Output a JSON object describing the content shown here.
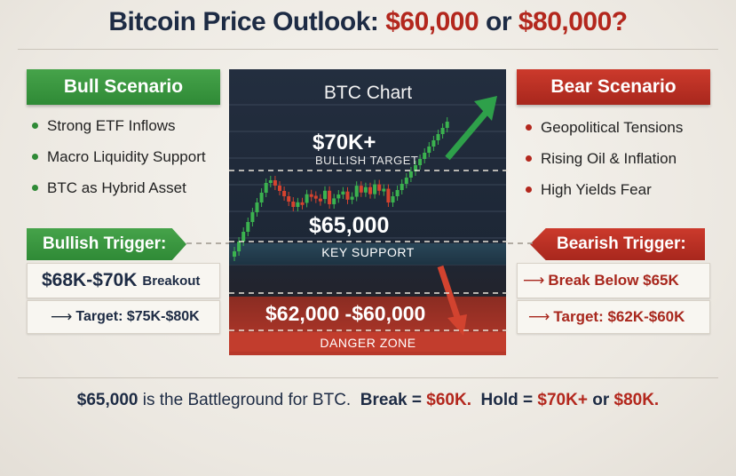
{
  "title": {
    "main": "Bitcoin Price Outlook:",
    "opt1": "$60,000",
    "or": "or",
    "opt2": "$80,000?"
  },
  "bull": {
    "header": "Bull Scenario",
    "items": [
      "Strong ETF Inflows",
      "Macro Liquidity Support",
      "BTC as Hybrid Asset"
    ],
    "trigger": "Bullish Trigger:",
    "breakout_level": "$68K-$70K",
    "breakout_word": "Breakout",
    "target": "Target: $75K-$80K"
  },
  "bear": {
    "header": "Bear Scenario",
    "items": [
      "Geopolitical Tensions",
      "Rising Oil & Inflation",
      "High Yields Fear"
    ],
    "trigger": "Bearish Trigger:",
    "break_text": "Break Below $65K",
    "target": "Target: $62K-$60K"
  },
  "chart": {
    "title": "BTC Chart",
    "target_value": "$70K+",
    "target_label": "BULLISH TARGET",
    "support_value": "$65,000",
    "support_label": "KEY SUPPORT",
    "danger_value": "$62,000 -$60,000",
    "danger_label": "DANGER ZONE"
  },
  "colors": {
    "bull": "#2f8a36",
    "bear": "#b3271d",
    "navy": "#1d2b44"
  },
  "footer": {
    "p1": "$65,000",
    "p2": "is the Battleground for BTC.",
    "p3": "Break =",
    "p4": "$60K.",
    "p5": "Hold =",
    "p6": "$70K+",
    "p7": "or",
    "p8": "$80K."
  }
}
